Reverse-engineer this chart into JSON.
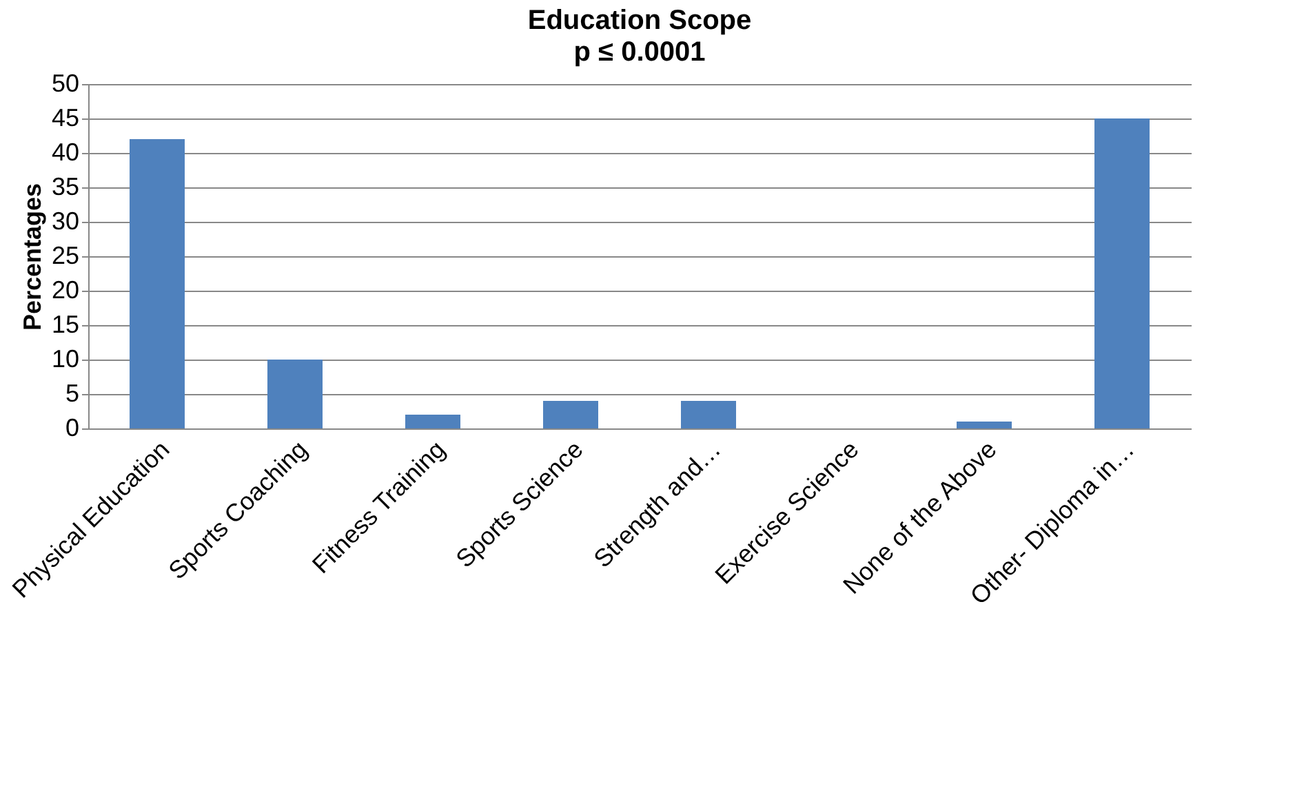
{
  "chart_data": {
    "type": "bar",
    "title": "Education Scope",
    "subtitle": "p ≤ 0.0001",
    "ylabel": "Percentages",
    "categories": [
      "Physical Education",
      "Sports Coaching",
      "Fitness Training",
      "Sports Science",
      "Strength and…",
      "Exercise Science",
      "None of the Above",
      "Other- Diploma in…"
    ],
    "values": [
      42,
      10,
      2,
      4,
      4,
      0,
      1,
      45
    ],
    "color": "#4f81bd",
    "ylim": [
      0,
      50
    ],
    "yticks": [
      0,
      5,
      10,
      15,
      20,
      25,
      30,
      35,
      40,
      45,
      50
    ],
    "grid": "y"
  }
}
